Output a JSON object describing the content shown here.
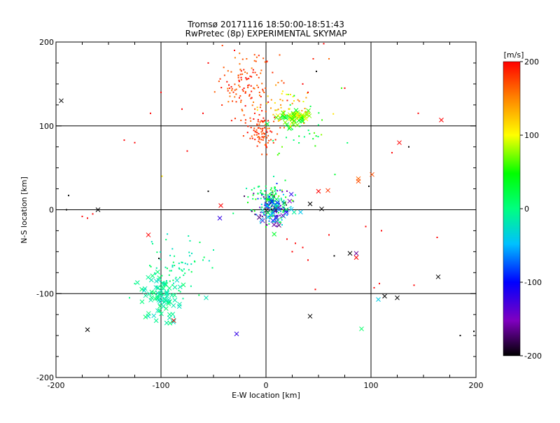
{
  "chart_data": {
    "type": "scatter",
    "title": "Tromsø 20171116 18:50:00-18:51:43",
    "subtitle": "RwPretec (8p) EXPERIMENTAL SKYMAP",
    "xlabel": "E-W location [km]",
    "ylabel": "N-S location [km]",
    "xlim": [
      -200,
      200
    ],
    "ylim": [
      -200,
      200
    ],
    "x_ticks": [
      "-200",
      "-100",
      "0",
      "100",
      "200"
    ],
    "y_ticks": [
      "-200",
      "-100",
      "0",
      "100",
      "200"
    ],
    "grid_lines_x": [
      -100,
      0,
      100
    ],
    "grid_lines_y": [
      -100,
      0,
      100
    ],
    "colorbar": {
      "label": "[m/s]",
      "range": [
        -200,
        200
      ],
      "ticks": [
        "200",
        "100",
        "0",
        "-100",
        "-200"
      ],
      "colors": [
        "#000000",
        "#8000c0",
        "#0000ff",
        "#00c0ff",
        "#00ff80",
        "#00ff00",
        "#ffff00",
        "#ff8000",
        "#ff0000"
      ]
    },
    "clusters": [
      {
        "cx": -20,
        "cy": 150,
        "sx": 14,
        "sy": 18,
        "count": 120,
        "vmin": 150,
        "vmax": 200,
        "marker": "dot"
      },
      {
        "cx": -5,
        "cy": 95,
        "sx": 7,
        "sy": 12,
        "count": 90,
        "vmin": 160,
        "vmax": 200,
        "marker": "dot"
      },
      {
        "cx": 25,
        "cy": 110,
        "sx": 7,
        "sy": 5,
        "count": 60,
        "vmin": 20,
        "vmax": 120,
        "marker": "x"
      },
      {
        "cx": 15,
        "cy": 120,
        "sx": 15,
        "sy": 15,
        "count": 50,
        "vmin": 90,
        "vmax": 160,
        "marker": "dot"
      },
      {
        "cx": 30,
        "cy": 95,
        "sx": 20,
        "sy": 20,
        "count": 30,
        "vmin": 0,
        "vmax": 80,
        "marker": "dot"
      },
      {
        "cx": 5,
        "cy": 5,
        "sx": 9,
        "sy": 11,
        "count": 160,
        "vmin": -200,
        "vmax": 60,
        "marker": "dot"
      },
      {
        "cx": 8,
        "cy": 0,
        "sx": 9,
        "sy": 10,
        "count": 50,
        "vmin": -200,
        "vmax": 40,
        "marker": "x"
      },
      {
        "cx": 0,
        "cy": 20,
        "sx": 12,
        "sy": 6,
        "count": 40,
        "vmin": -20,
        "vmax": 80,
        "marker": "dot"
      },
      {
        "cx": -100,
        "cy": -105,
        "sx": 10,
        "sy": 15,
        "count": 80,
        "vmin": -30,
        "vmax": 10,
        "marker": "x"
      },
      {
        "cx": -85,
        "cy": -70,
        "sx": 15,
        "sy": 18,
        "count": 70,
        "vmin": -30,
        "vmax": 20,
        "marker": "dot"
      }
    ],
    "isolated_points": [
      {
        "x": -195,
        "y": 130,
        "v": -200,
        "m": "x"
      },
      {
        "x": -170,
        "y": -143,
        "v": -200,
        "m": "x"
      },
      {
        "x": -160,
        "y": 0,
        "v": -200,
        "m": "x"
      },
      {
        "x": -112,
        "y": -30,
        "v": 200,
        "m": "x"
      },
      {
        "x": -88,
        "y": -132,
        "v": 200,
        "m": "x"
      },
      {
        "x": -57,
        "y": -105,
        "v": -20,
        "m": "x"
      },
      {
        "x": -43,
        "y": 5,
        "v": 200,
        "m": "x"
      },
      {
        "x": -44,
        "y": -10,
        "v": -120,
        "m": "x"
      },
      {
        "x": -28,
        "y": -148,
        "v": -120,
        "m": "x"
      },
      {
        "x": 42,
        "y": 7,
        "v": -200,
        "m": "x"
      },
      {
        "x": 42,
        "y": -127,
        "v": -200,
        "m": "x"
      },
      {
        "x": 50,
        "y": 22,
        "v": 200,
        "m": "x"
      },
      {
        "x": 59,
        "y": 23,
        "v": 180,
        "m": "x"
      },
      {
        "x": 53,
        "y": 1,
        "v": -200,
        "m": "x"
      },
      {
        "x": 80,
        "y": -52,
        "v": -200,
        "m": "x"
      },
      {
        "x": 86,
        "y": -52,
        "v": -160,
        "m": "x"
      },
      {
        "x": 86,
        "y": -57,
        "v": 200,
        "m": "x"
      },
      {
        "x": 88,
        "y": 37,
        "v": 160,
        "m": "x"
      },
      {
        "x": 88,
        "y": 34,
        "v": 170,
        "m": "x"
      },
      {
        "x": 91,
        "y": -142,
        "v": 10,
        "m": "x"
      },
      {
        "x": 101,
        "y": 42,
        "v": 170,
        "m": "x"
      },
      {
        "x": 107,
        "y": -107,
        "v": -40,
        "m": "x"
      },
      {
        "x": 113,
        "y": -103,
        "v": -200,
        "m": "x"
      },
      {
        "x": 125,
        "y": -105,
        "v": -200,
        "m": "x"
      },
      {
        "x": 127,
        "y": 80,
        "v": 200,
        "m": "x"
      },
      {
        "x": 164,
        "y": -80,
        "v": -200,
        "m": "x"
      },
      {
        "x": 167,
        "y": 107,
        "v": 200,
        "m": "x"
      },
      {
        "x": 136,
        "y": 75,
        "v": -200,
        "m": "dot"
      },
      {
        "x": -188,
        "y": 17,
        "v": -200,
        "m": "dot"
      },
      {
        "x": -190,
        "y": 0,
        "v": -200,
        "m": "dot"
      },
      {
        "x": -55,
        "y": 22,
        "v": -200,
        "m": "dot"
      },
      {
        "x": -99,
        "y": 40,
        "v": 110,
        "m": "dot"
      },
      {
        "x": -102,
        "y": -58,
        "v": -200,
        "m": "dot"
      },
      {
        "x": -135,
        "y": 83,
        "v": 200,
        "m": "dot"
      },
      {
        "x": -125,
        "y": -88,
        "v": 0,
        "m": "dot"
      },
      {
        "x": 185,
        "y": -150,
        "v": -200,
        "m": "dot"
      },
      {
        "x": 198,
        "y": -145,
        "v": -200,
        "m": "dot"
      },
      {
        "x": 163,
        "y": -33,
        "v": 200,
        "m": "dot"
      },
      {
        "x": 141,
        "y": -90,
        "v": 200,
        "m": "dot"
      },
      {
        "x": 108,
        "y": -88,
        "v": 200,
        "m": "dot"
      },
      {
        "x": 103,
        "y": -93,
        "v": 200,
        "m": "dot"
      },
      {
        "x": 145,
        "y": 115,
        "v": 200,
        "m": "dot"
      },
      {
        "x": 98,
        "y": 28,
        "v": -200,
        "m": "dot"
      },
      {
        "x": 120,
        "y": 68,
        "v": 200,
        "m": "dot"
      },
      {
        "x": 65,
        "y": -55,
        "v": -200,
        "m": "dot"
      },
      {
        "x": 60,
        "y": -30,
        "v": 200,
        "m": "dot"
      },
      {
        "x": 95,
        "y": -20,
        "v": 200,
        "m": "dot"
      },
      {
        "x": 110,
        "y": -25,
        "v": 200,
        "m": "dot"
      },
      {
        "x": 75,
        "y": 145,
        "v": 200,
        "m": "dot"
      },
      {
        "x": 72,
        "y": 145,
        "v": 60,
        "m": "dot"
      },
      {
        "x": 60,
        "y": 180,
        "v": 160,
        "m": "dot"
      },
      {
        "x": 55,
        "y": 198,
        "v": 200,
        "m": "dot"
      },
      {
        "x": 45,
        "y": 180,
        "v": 190,
        "m": "dot"
      },
      {
        "x": 48,
        "y": 165,
        "v": -200,
        "m": "dot"
      },
      {
        "x": 40,
        "y": 140,
        "v": 200,
        "m": "dot"
      },
      {
        "x": 35,
        "y": 150,
        "v": 200,
        "m": "dot"
      },
      {
        "x": -30,
        "y": 190,
        "v": 200,
        "m": "dot"
      },
      {
        "x": -55,
        "y": 175,
        "v": 200,
        "m": "dot"
      },
      {
        "x": -110,
        "y": 115,
        "v": 200,
        "m": "dot"
      },
      {
        "x": -100,
        "y": 140,
        "v": 200,
        "m": "dot"
      },
      {
        "x": -80,
        "y": 120,
        "v": 200,
        "m": "dot"
      },
      {
        "x": -60,
        "y": 115,
        "v": 200,
        "m": "dot"
      },
      {
        "x": -75,
        "y": 70,
        "v": 200,
        "m": "dot"
      },
      {
        "x": -125,
        "y": 80,
        "v": 200,
        "m": "dot"
      },
      {
        "x": 40,
        "y": -60,
        "v": 200,
        "m": "dot"
      },
      {
        "x": 35,
        "y": -45,
        "v": 200,
        "m": "dot"
      },
      {
        "x": 28,
        "y": -40,
        "v": 200,
        "m": "dot"
      },
      {
        "x": 25,
        "y": -50,
        "v": 200,
        "m": "dot"
      },
      {
        "x": 20,
        "y": -35,
        "v": 200,
        "m": "dot"
      },
      {
        "x": 47,
        "y": -95,
        "v": 200,
        "m": "dot"
      },
      {
        "x": -165,
        "y": -5,
        "v": 200,
        "m": "dot"
      },
      {
        "x": -175,
        "y": -8,
        "v": 200,
        "m": "dot"
      },
      {
        "x": -170,
        "y": -10,
        "v": 200,
        "m": "dot"
      },
      {
        "x": -130,
        "y": -105,
        "v": 0,
        "m": "dot"
      },
      {
        "x": -60,
        "y": -60,
        "v": 0,
        "m": "dot"
      },
      {
        "x": -50,
        "y": -48,
        "v": -10,
        "m": "dot"
      }
    ]
  }
}
